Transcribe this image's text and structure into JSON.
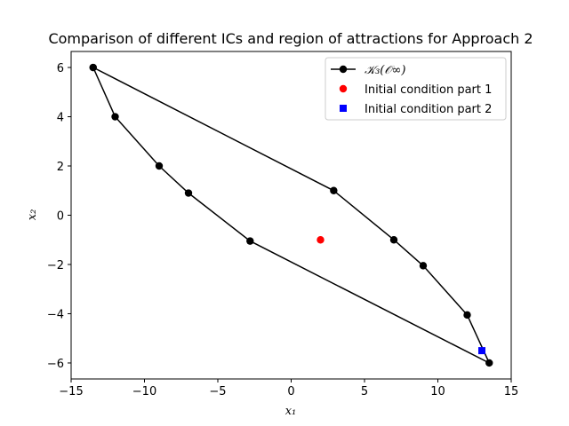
{
  "chart_data": {
    "type": "line",
    "title": "Comparison of different ICs and region of attractions for Approach 2",
    "xlabel": "x₁",
    "ylabel": "x₂",
    "xlim": [
      -15,
      15
    ],
    "ylim": [
      -6.65,
      6.65
    ],
    "xticks": [
      -15,
      -10,
      -5,
      0,
      5,
      10,
      15
    ],
    "yticks": [
      -6,
      -4,
      -2,
      0,
      2,
      4,
      6
    ],
    "grid": false,
    "legend_position": "top-right",
    "series": [
      {
        "name": "𝒦₃(𝒪∞)",
        "type": "line",
        "color": "#000000",
        "marker": "circle",
        "x": [
          -13.5,
          -12.0,
          -9.0,
          -7.0,
          -2.8,
          13.5,
          12.0,
          9.0,
          7.0,
          2.9,
          -13.5
        ],
        "y": [
          6.0,
          4.0,
          2.0,
          0.9,
          -1.05,
          -6.0,
          -4.05,
          -2.05,
          -1.0,
          1.0,
          6.0
        ]
      },
      {
        "name": "Initial condition part 1",
        "type": "scatter",
        "color": "#ff0000",
        "marker": "circle",
        "x": [
          2.0
        ],
        "y": [
          -1.0
        ]
      },
      {
        "name": "Initial condition part 2",
        "type": "scatter",
        "color": "#0000ff",
        "marker": "square",
        "x": [
          13.0
        ],
        "y": [
          -5.5
        ]
      }
    ]
  }
}
